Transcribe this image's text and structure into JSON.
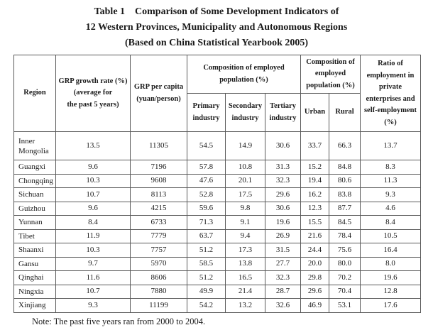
{
  "title": "Table 1    Comparison of Some Development Indicators of\n12 Western Provinces, Municipality and Autonomous Regions\n(Based on China Statistical Yearbook 2005)",
  "note": "Note: The past five years ran from 2000 to 2004.",
  "table": {
    "header": {
      "region": "Region",
      "grp_growth": "GRP growth rate (%)\n(average for\nthe past 5 years)",
      "grp_per_capita": "GRP per capita\n(yuan/person)",
      "employed_industry_group": "Composition of employed\npopulation (%)",
      "primary": "Primary\nindustry",
      "secondary": "Secondary\nindustry",
      "tertiary": "Tertiary\nindustry",
      "employed_urban_rural_group": "Composition of\nemployed\npopulation (%)",
      "urban": "Urban",
      "rural": "Rural",
      "private_ratio": "Ratio of\nemployment in\nprivate\nenterprises and\nself-employment\n(%)"
    },
    "rows": [
      {
        "region": "Inner Mongolia",
        "values": [
          "13.5",
          "11305",
          "54.5",
          "14.9",
          "30.6",
          "33.7",
          "66.3",
          "13.7"
        ]
      },
      {
        "region": "Guangxi",
        "values": [
          "9.6",
          "7196",
          "57.8",
          "10.8",
          "31.3",
          "15.2",
          "84.8",
          "8.3"
        ]
      },
      {
        "region": "Chongqing",
        "values": [
          "10.3",
          "9608",
          "47.6",
          "20.1",
          "32.3",
          "19.4",
          "80.6",
          "11.3"
        ]
      },
      {
        "region": "Sichuan",
        "values": [
          "10.7",
          "8113",
          "52.8",
          "17.5",
          "29.6",
          "16.2",
          "83.8",
          "9.3"
        ]
      },
      {
        "region": "Guizhou",
        "values": [
          "9.6",
          "4215",
          "59.6",
          "9.8",
          "30.6",
          "12.3",
          "87.7",
          "4.6"
        ]
      },
      {
        "region": "Yunnan",
        "values": [
          "8.4",
          "6733",
          "71.3",
          "9.1",
          "19.6",
          "15.5",
          "84.5",
          "8.4"
        ]
      },
      {
        "region": "Tibet",
        "values": [
          "11.9",
          "7779",
          "63.7",
          "9.4",
          "26.9",
          "21.6",
          "78.4",
          "10.5"
        ]
      },
      {
        "region": "Shaanxi",
        "values": [
          "10.3",
          "7757",
          "51.2",
          "17.3",
          "31.5",
          "24.4",
          "75.6",
          "16.4"
        ]
      },
      {
        "region": "Gansu",
        "values": [
          "9.7",
          "5970",
          "58.5",
          "13.8",
          "27.7",
          "20.0",
          "80.0",
          "8.0"
        ]
      },
      {
        "region": "Qinghai",
        "values": [
          "11.6",
          "8606",
          "51.2",
          "16.5",
          "32.3",
          "29.8",
          "70.2",
          "19.6"
        ]
      },
      {
        "region": "Ningxia",
        "values": [
          "10.7",
          "7880",
          "49.9",
          "21.4",
          "28.7",
          "29.6",
          "70.4",
          "12.8"
        ]
      },
      {
        "region": "Xinjiang",
        "values": [
          "9.3",
          "11199",
          "54.2",
          "13.2",
          "32.6",
          "46.9",
          "53.1",
          "17.6"
        ]
      }
    ]
  }
}
